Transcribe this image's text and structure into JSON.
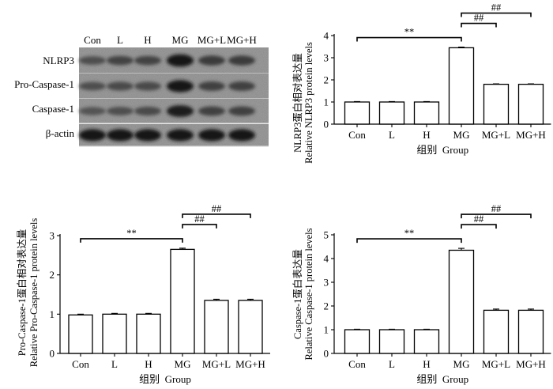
{
  "western_blot": {
    "lanes": [
      "Con",
      "L",
      "H",
      "MG",
      "MG+L",
      "MG+H"
    ],
    "proteins": [
      "NLRP3",
      "Pro-Caspase-1",
      "Caspase-1",
      "β-actin"
    ],
    "band_intensity": [
      [
        0.35,
        0.45,
        0.45,
        0.95,
        0.55,
        0.55
      ],
      [
        0.35,
        0.4,
        0.4,
        0.9,
        0.5,
        0.5
      ],
      [
        0.3,
        0.35,
        0.4,
        0.85,
        0.5,
        0.5
      ],
      [
        0.9,
        0.9,
        0.9,
        0.9,
        0.9,
        0.9
      ]
    ]
  },
  "chart_data": [
    {
      "type": "bar",
      "categories": [
        "Con",
        "L",
        "H",
        "MG",
        "MG+L",
        "MG+H"
      ],
      "values": [
        1.0,
        1.0,
        1.0,
        3.45,
        1.8,
        1.8
      ],
      "errors": [
        0.02,
        0.02,
        0.02,
        0.03,
        0.02,
        0.02
      ],
      "ylim": [
        0,
        4
      ],
      "yticks": [
        "0",
        "1",
        "2",
        "3",
        "4"
      ],
      "ylabel_cn": "NLRP3蛋白相对表达量",
      "ylabel_en": "Relative NLRP3 protein levels",
      "xlabel": "组别  Group",
      "significance": [
        {
          "from": 0,
          "to": 3,
          "label": "**"
        },
        {
          "from": 3,
          "to": 4,
          "label": "##"
        },
        {
          "from": 3,
          "to": 5,
          "label": "##"
        }
      ]
    },
    {
      "type": "bar",
      "categories": [
        "Con",
        "L",
        "H",
        "MG",
        "MG+L",
        "MG+H"
      ],
      "values": [
        0.98,
        1.0,
        1.0,
        2.65,
        1.35,
        1.35
      ],
      "errors": [
        0.02,
        0.02,
        0.02,
        0.03,
        0.03,
        0.03
      ],
      "ylim": [
        0,
        3
      ],
      "yticks": [
        "0",
        "1",
        "2",
        "3"
      ],
      "ylabel_cn": "Pro-Caspase-1蛋白相对表达量",
      "ylabel_en": "Relative Pro-Caspase-1 protein levels",
      "xlabel": "组别  Group",
      "significance": [
        {
          "from": 0,
          "to": 3,
          "label": "**"
        },
        {
          "from": 3,
          "to": 4,
          "label": "##"
        },
        {
          "from": 3,
          "to": 5,
          "label": "##"
        }
      ]
    },
    {
      "type": "bar",
      "categories": [
        "Con",
        "L",
        "H",
        "MG",
        "MG+L",
        "MG+H"
      ],
      "values": [
        1.0,
        1.0,
        1.0,
        4.35,
        1.82,
        1.82
      ],
      "errors": [
        0.02,
        0.02,
        0.02,
        0.08,
        0.05,
        0.05
      ],
      "ylim": [
        0,
        5
      ],
      "yticks": [
        "0",
        "1",
        "2",
        "3",
        "4",
        "5"
      ],
      "ylabel_cn": "Caspase-1蛋白表达量",
      "ylabel_en": "Relative Caspase-1 protein levels",
      "xlabel": "组别  Group",
      "significance": [
        {
          "from": 0,
          "to": 3,
          "label": "**"
        },
        {
          "from": 3,
          "to": 4,
          "label": "##"
        },
        {
          "from": 3,
          "to": 5,
          "label": "##"
        }
      ]
    }
  ]
}
